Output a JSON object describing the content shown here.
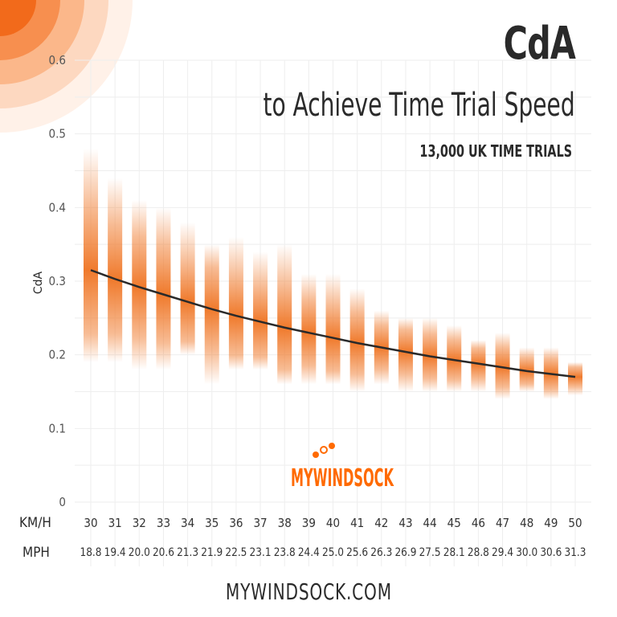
{
  "chart_data": {
    "type": "range-bar",
    "title": "CdA",
    "subtitle": "to Achieve Time Trial Speed",
    "annotation": "13,000 UK TIME TRIALS",
    "ylabel": "CdA",
    "ylim": [
      0,
      0.6
    ],
    "yticks": [
      "0",
      "0.1",
      "0.2",
      "0.3",
      "0.4",
      "0.5",
      "0.6"
    ],
    "grid": true,
    "x_row_labels": {
      "kmh": "KM/H",
      "mph": "MPH"
    },
    "categories_kmh": [
      "30",
      "31",
      "32",
      "33",
      "34",
      "35",
      "36",
      "37",
      "38",
      "39",
      "40",
      "41",
      "42",
      "43",
      "44",
      "45",
      "46",
      "47",
      "48",
      "49",
      "50"
    ],
    "categories_mph": [
      "18.8",
      "19.4",
      "20.0",
      "20.6",
      "21.3",
      "21.9",
      "22.5",
      "23.1",
      "23.8",
      "24.4",
      "25.0",
      "25.6",
      "26.3",
      "26.9",
      "27.5",
      "28.1",
      "28.8",
      "29.4",
      "30.0",
      "30.6",
      "31.3"
    ],
    "range_high": [
      0.48,
      0.44,
      0.41,
      0.4,
      0.38,
      0.35,
      0.36,
      0.34,
      0.35,
      0.31,
      0.31,
      0.29,
      0.26,
      0.25,
      0.25,
      0.24,
      0.22,
      0.23,
      0.21,
      0.21,
      0.19
    ],
    "range_low": [
      0.19,
      0.19,
      0.18,
      0.18,
      0.2,
      0.16,
      0.18,
      0.18,
      0.16,
      0.16,
      0.16,
      0.15,
      0.16,
      0.15,
      0.15,
      0.15,
      0.15,
      0.14,
      0.15,
      0.14,
      0.145
    ],
    "trend": [
      0.315,
      0.303,
      0.292,
      0.282,
      0.272,
      0.262,
      0.253,
      0.245,
      0.237,
      0.23,
      0.223,
      0.216,
      0.21,
      0.204,
      0.198,
      0.193,
      0.188,
      0.183,
      0.178,
      0.174,
      0.17
    ],
    "colors": {
      "bar": "#f07a2c",
      "trend": "#2a2a2a",
      "grid": "#eeeeee",
      "text": "#2a2a2a"
    }
  },
  "logo_text": "MYWINDSOCK",
  "footer": "MYWINDSOCK.COM"
}
